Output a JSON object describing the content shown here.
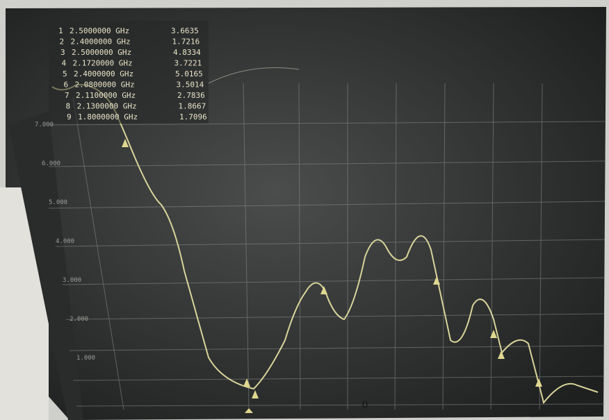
{
  "screen": {
    "markers": [
      {
        "index": "1",
        "frequency": "2.5000000 GHz",
        "value": "3.6635"
      },
      {
        "index": "2",
        "frequency": "2.4000000 GHz",
        "value": "1.7216"
      },
      {
        "index": "3",
        "frequency": "2.5000000 GHz",
        "value": "4.8334"
      },
      {
        "index": "4",
        "frequency": "2.1720000 GHz",
        "value": "3.7221"
      },
      {
        "index": "5",
        "frequency": "2.4000000 GHz",
        "value": "5.0165"
      },
      {
        "index": "6",
        "frequency": "2.0800000 GHz",
        "value": "3.5014"
      },
      {
        "index": "7",
        "frequency": "2.1100000 GHz",
        "value": "2.7836"
      },
      {
        "index": "8",
        "frequency": "2.1300000 GHz",
        "value": "1.8667"
      },
      {
        "index": "9",
        "frequency": "1.8000000 GHz",
        "value": "1.7096"
      }
    ],
    "y_labels": [
      "7.000",
      "6.000",
      "5.000",
      "4.000",
      "3.000",
      "2.000",
      "1.000"
    ],
    "bottom_label": "0"
  }
}
